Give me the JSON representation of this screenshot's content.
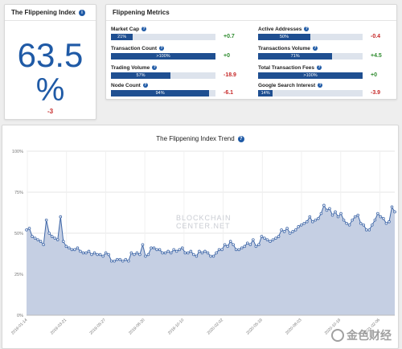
{
  "index_card": {
    "title": "The Flippening Index",
    "value": "63.5",
    "unit": "%",
    "change": "-3"
  },
  "metrics": {
    "title": "Flippening Metrics",
    "items": [
      {
        "label": "Market Cap",
        "bar_text": "21%",
        "fill": 0.21,
        "change": "+0.7",
        "sign": "pos"
      },
      {
        "label": "Transaction Count",
        "bar_text": ">100%",
        "fill": 1.0,
        "change": "+0",
        "sign": "pos"
      },
      {
        "label": "Trading Volume",
        "bar_text": "57%",
        "fill": 0.57,
        "change": "-18.9",
        "sign": "neg"
      },
      {
        "label": "Node Count",
        "bar_text": "94%",
        "fill": 0.94,
        "change": "-6.1",
        "sign": "neg"
      },
      {
        "label": "Active Addresses",
        "bar_text": "50%",
        "fill": 0.5,
        "change": "-0.4",
        "sign": "neg"
      },
      {
        "label": "Transactions Volume",
        "bar_text": "71%",
        "fill": 0.71,
        "change": "+4.5",
        "sign": "pos"
      },
      {
        "label": "Total Transaction Fees",
        "bar_text": ">100%",
        "fill": 1.0,
        "change": "+0",
        "sign": "pos"
      },
      {
        "label": "Google Search Interest",
        "bar_text": "14%",
        "fill": 0.14,
        "change": "-3.9",
        "sign": "neg"
      }
    ]
  },
  "trend": {
    "title": "The Flippening Index Trend",
    "watermark_line1": "BLOCKCHAIN",
    "watermark_line2": "CENTER.NET"
  },
  "stamp_text": "金色财经",
  "colors": {
    "accent": "#1f5aa6",
    "bar": "#1f4f91",
    "area_fill": "#c5cfe3",
    "line": "#3f67a8",
    "positive": "#2e8b2e",
    "negative": "#c62828"
  },
  "chart_data": {
    "type": "area",
    "title": "The Flippening Index Trend",
    "ylim": [
      0,
      100
    ],
    "y_ticks": [
      "0%",
      "25%",
      "50%",
      "75%",
      "100%"
    ],
    "x_ticks": [
      "2019-01-14",
      "2019-03-21",
      "2019-05-27",
      "2019-08-20",
      "2019-10-10",
      "2020-02-02",
      "2020-05-19",
      "2020-08-03",
      "2020-10-19",
      "2021-02-06"
    ],
    "grid": true,
    "series": [
      {
        "values": [
          52,
          53,
          48,
          47,
          46,
          45,
          43,
          58,
          50,
          48,
          47,
          46,
          60,
          45,
          42,
          41,
          40,
          40,
          41,
          39,
          38,
          38,
          39,
          37,
          38,
          37,
          37,
          36,
          38,
          37,
          33,
          33,
          34,
          34,
          33,
          34,
          33,
          38,
          37,
          38,
          37,
          43,
          36,
          37,
          41,
          41,
          40,
          40,
          38,
          38,
          39,
          38,
          40,
          39,
          40,
          41,
          38,
          38,
          39,
          37,
          36,
          39,
          38,
          39,
          38,
          36,
          36,
          38,
          40,
          40,
          43,
          42,
          45,
          43,
          40,
          40,
          41,
          42,
          44,
          43,
          46,
          42,
          43,
          48,
          47,
          46,
          45,
          46,
          47,
          48,
          52,
          51,
          53,
          50,
          51,
          52,
          54,
          55,
          56,
          57,
          60,
          57,
          58,
          59,
          62,
          67,
          64,
          65,
          61,
          63,
          60,
          62,
          58,
          56,
          55,
          58,
          60,
          61,
          56,
          55,
          52,
          52,
          55,
          58,
          62,
          60,
          59,
          56,
          57,
          66,
          63
        ]
      }
    ]
  }
}
